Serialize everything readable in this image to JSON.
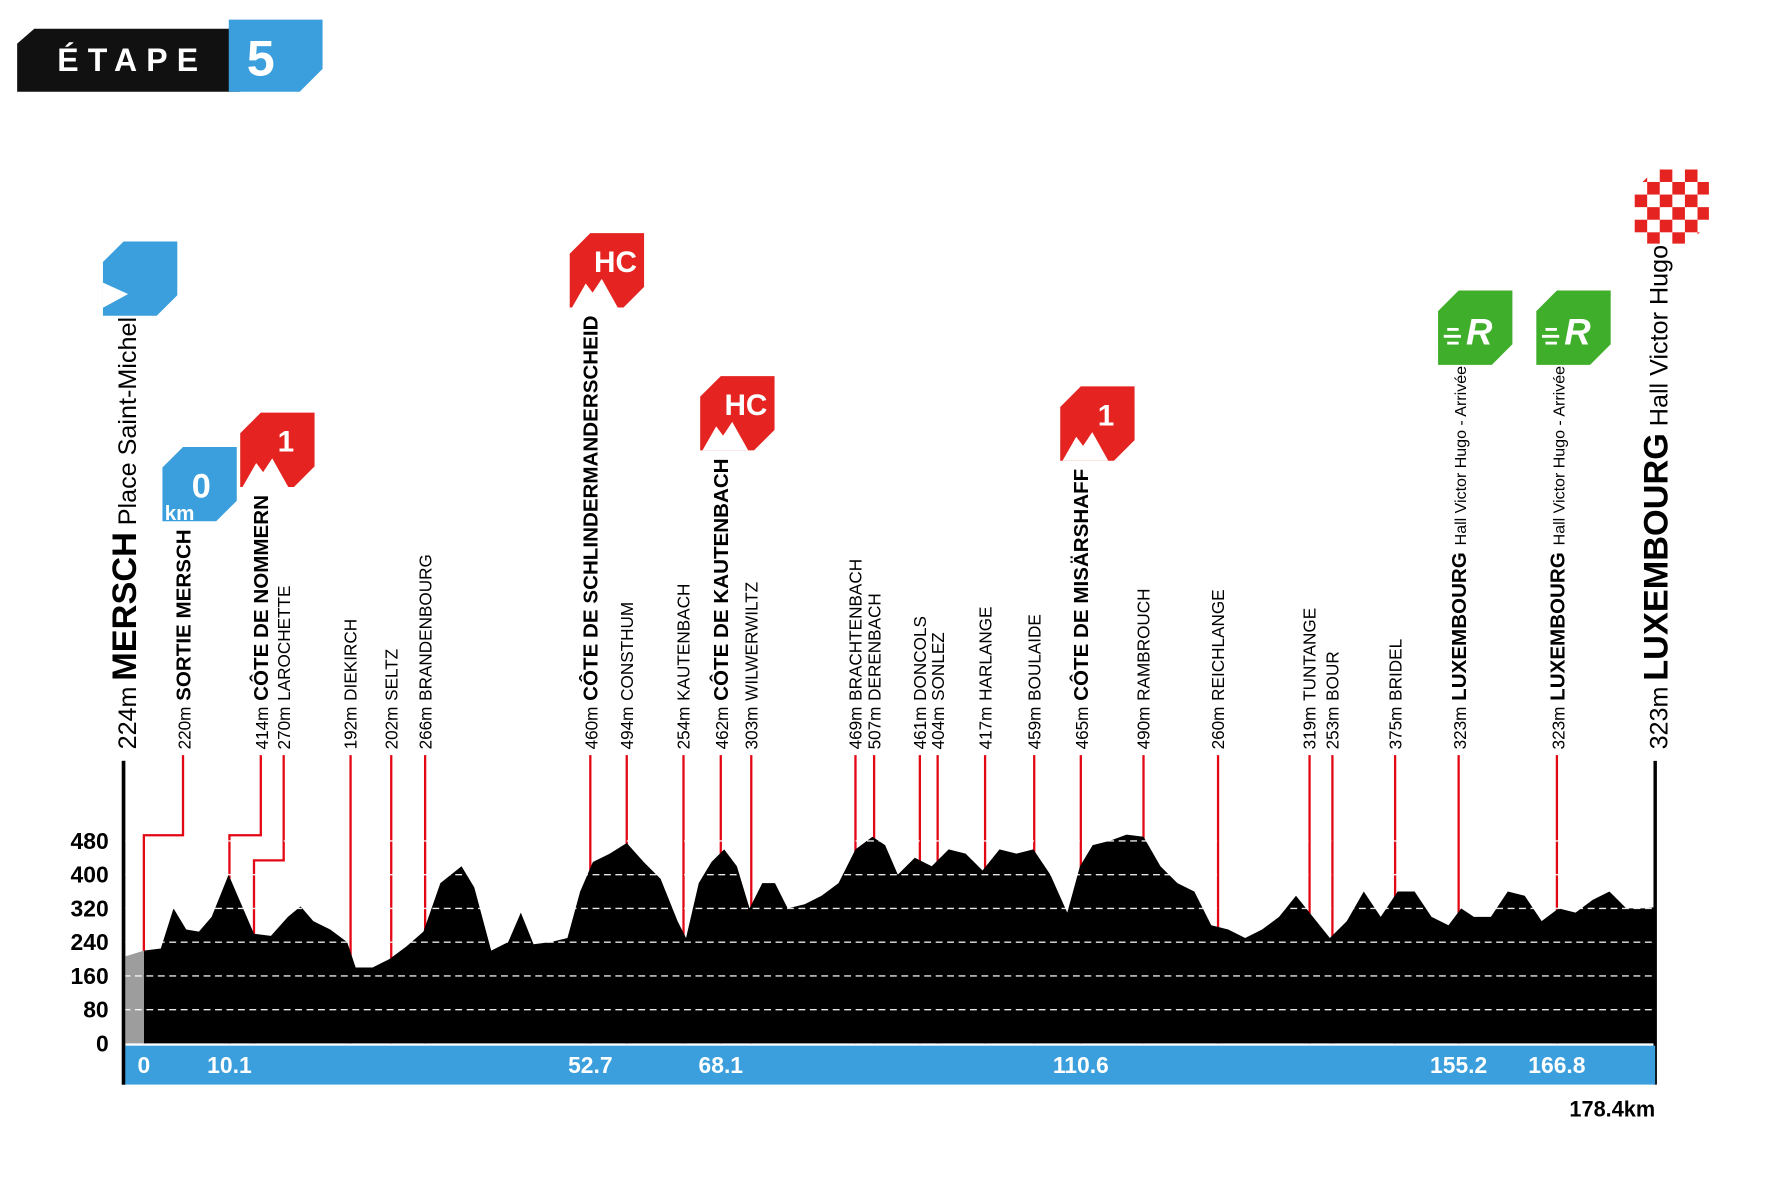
{
  "title": {
    "label": "ÉTAPE",
    "number": "5"
  },
  "chart_data": {
    "type": "area",
    "x": [
      -2.4,
      0,
      2,
      3.5,
      5,
      6.5,
      8,
      10,
      11.5,
      13,
      15,
      17,
      18.5,
      20,
      22,
      24,
      25,
      27,
      29,
      31,
      33,
      35,
      37.5,
      39,
      41,
      43,
      44.5,
      46,
      48,
      50,
      51.5,
      53,
      55,
      57,
      59,
      61,
      63,
      64,
      65.5,
      67,
      68.5,
      70,
      71.5,
      73,
      74.5,
      76,
      78,
      80,
      82,
      84,
      86,
      87.5,
      89,
      91,
      93,
      95,
      97,
      99,
      101,
      103,
      105,
      107,
      109,
      110.5,
      112,
      114,
      116,
      118,
      120,
      122,
      124,
      126,
      128,
      130,
      132,
      134,
      136,
      138,
      140,
      142,
      144,
      146,
      148,
      150,
      152,
      154,
      155.5,
      157,
      159,
      161,
      163,
      165,
      167,
      169,
      171,
      173,
      175,
      177,
      178.4
    ],
    "values": [
      205,
      220,
      225,
      320,
      270,
      265,
      300,
      400,
      330,
      260,
      255,
      300,
      325,
      290,
      270,
      240,
      180,
      180,
      200,
      230,
      265,
      380,
      420,
      370,
      220,
      240,
      310,
      235,
      240,
      250,
      360,
      430,
      450,
      475,
      430,
      390,
      290,
      250,
      380,
      430,
      460,
      420,
      320,
      380,
      380,
      320,
      330,
      350,
      380,
      460,
      490,
      470,
      400,
      440,
      420,
      460,
      450,
      410,
      460,
      450,
      460,
      400,
      310,
      420,
      470,
      480,
      495,
      490,
      420,
      380,
      360,
      280,
      270,
      250,
      270,
      300,
      350,
      300,
      250,
      290,
      360,
      300,
      360,
      360,
      300,
      280,
      320,
      300,
      300,
      360,
      350,
      290,
      320,
      310,
      340,
      360,
      320,
      320,
      323
    ],
    "xlim": [
      -2.4,
      178.4
    ],
    "xticks": [
      0,
      10.1,
      52.7,
      68.1,
      110.6,
      155.2,
      166.8,
      {
        "value": 178.4,
        "label": "178.4km"
      }
    ],
    "ylim": [
      0,
      480
    ],
    "yticks": [
      0,
      80,
      160,
      240,
      320,
      400,
      480
    ],
    "grid": true,
    "color": "#000000",
    "neutral_color": "#9d9d9e",
    "band_color": "#3a9fdc",
    "marker_color": "#e30613",
    "waypoints": [
      {
        "km": -2.4,
        "altitude": "224m",
        "name": "MERSCH",
        "sub": "Place Saint-Michel",
        "weight": "large",
        "badge": {
          "kind": "start"
        }
      },
      {
        "km": 0,
        "altitude": "220m",
        "name": "SORTIE MERSCH",
        "weight": "bold",
        "badge": {
          "kind": "km",
          "text": "0",
          "unit": "km"
        }
      },
      {
        "km": 10.1,
        "altitude": "414m",
        "name": "CÔTE DE NOMMERN",
        "weight": "bold",
        "badge": {
          "kind": "climb",
          "text": "1"
        }
      },
      {
        "km": 13.0,
        "altitude": "270m",
        "name": "LAROCHETTE",
        "weight": "normal"
      },
      {
        "km": 24.4,
        "altitude": "192m",
        "name": "DIEKIRCH",
        "weight": "normal"
      },
      {
        "km": 29.2,
        "altitude": "202m",
        "name": "SELTZ",
        "weight": "normal"
      },
      {
        "km": 33.2,
        "altitude": "266m",
        "name": "BRANDENBOURG",
        "weight": "normal"
      },
      {
        "km": 52.7,
        "altitude": "460m",
        "name": "CÔTE DE SCHLINDERMANDERSCHEID",
        "weight": "bold",
        "badge": {
          "kind": "climb",
          "text": "HC"
        }
      },
      {
        "km": 57.0,
        "altitude": "494m",
        "name": "CONSTHUM",
        "weight": "normal"
      },
      {
        "km": 63.7,
        "altitude": "254m",
        "name": "KAUTENBACH",
        "weight": "normal"
      },
      {
        "km": 68.1,
        "altitude": "462m",
        "name": "CÔTE DE KAUTENBACH",
        "weight": "bold",
        "badge": {
          "kind": "climb",
          "text": "HC"
        }
      },
      {
        "km": 71.7,
        "altitude": "303m",
        "name": "WILWERWILTZ",
        "weight": "normal"
      },
      {
        "km": 84.0,
        "altitude": "469m",
        "name": "BRACHTENBACH",
        "weight": "normal"
      },
      {
        "km": 86.2,
        "altitude": "507m",
        "name": "DERENBACH",
        "weight": "normal"
      },
      {
        "km": 91.6,
        "altitude": "461m",
        "name": "DONCOLS",
        "weight": "normal"
      },
      {
        "km": 93.7,
        "altitude": "404m",
        "name": "SONLEZ",
        "weight": "normal"
      },
      {
        "km": 99.3,
        "altitude": "417m",
        "name": "HARLANGE",
        "weight": "normal"
      },
      {
        "km": 105.1,
        "altitude": "459m",
        "name": "BOULAIDE",
        "weight": "normal"
      },
      {
        "km": 110.6,
        "altitude": "465m",
        "name": "CÔTE DE MISÄRSHAFF",
        "weight": "bold",
        "badge": {
          "kind": "climb",
          "text": "1"
        }
      },
      {
        "km": 118.0,
        "altitude": "490m",
        "name": "RAMBROUCH",
        "weight": "normal"
      },
      {
        "km": 126.8,
        "altitude": "260m",
        "name": "REICHLANGE",
        "weight": "normal"
      },
      {
        "km": 137.6,
        "altitude": "319m",
        "name": "TUNTANGE",
        "weight": "normal"
      },
      {
        "km": 140.3,
        "altitude": "253m",
        "name": "BOUR",
        "weight": "normal"
      },
      {
        "km": 147.7,
        "altitude": "375m",
        "name": "BRIDEL",
        "weight": "normal"
      },
      {
        "km": 155.2,
        "altitude": "323m",
        "name": "LUXEMBOURG",
        "sub": "Hall Victor Hugo - Arrivée",
        "weight": "bold",
        "badge": {
          "kind": "sprint",
          "text": "R"
        }
      },
      {
        "km": 166.8,
        "altitude": "323m",
        "name": "LUXEMBOURG",
        "sub": "Hall Victor Hugo - Arrivée",
        "weight": "bold",
        "badge": {
          "kind": "sprint",
          "text": "R"
        }
      },
      {
        "km": 178.4,
        "altitude": "323m",
        "name": "LUXEMBOURG",
        "sub": "Hall Victor Hugo",
        "weight": "large",
        "badge": {
          "kind": "finish"
        }
      }
    ]
  }
}
